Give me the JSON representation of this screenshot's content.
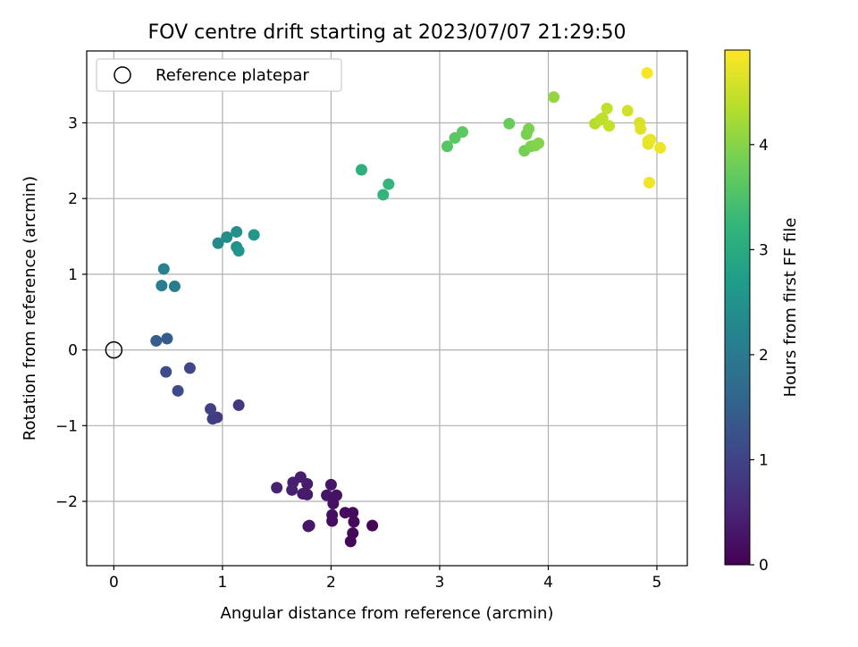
{
  "chart_data": {
    "type": "scatter",
    "title": "FOV centre drift starting at 2023/07/07 21:29:50",
    "xlabel": "Angular distance from reference (arcmin)",
    "ylabel": "Rotation from reference (arcmin)",
    "xlim": [
      -0.25,
      5.28
    ],
    "ylim": [
      -2.85,
      3.95
    ],
    "xticks": [
      0,
      1,
      2,
      3,
      4,
      5
    ],
    "xtick_labels": [
      "0",
      "1",
      "2",
      "3",
      "4",
      "5"
    ],
    "yticks": [
      -2,
      -1,
      0,
      1,
      2,
      3
    ],
    "ytick_labels": [
      "−2",
      "−1",
      "0",
      "1",
      "2",
      "3"
    ],
    "grid": true,
    "legend": {
      "placement": "upper-left",
      "label": "Reference platepar"
    },
    "reference_point": {
      "x": 0,
      "y": 0
    },
    "colorbar": {
      "label": "Hours from first FF file",
      "range": [
        0,
        4.9
      ],
      "ticks": [
        0,
        1,
        2,
        3,
        4
      ],
      "tick_labels": [
        "0",
        "1",
        "2",
        "3",
        "4"
      ],
      "colormap": [
        "#440154",
        "#482878",
        "#3e4989",
        "#31688e",
        "#26828e",
        "#1f9e89",
        "#35b779",
        "#6ece58",
        "#b5de2b",
        "#fde725"
      ]
    },
    "points": [
      {
        "x": 2.38,
        "y": -2.32,
        "h": 0.05
      },
      {
        "x": 2.18,
        "y": -2.53,
        "h": 0.08
      },
      {
        "x": 2.2,
        "y": -2.42,
        "h": 0.1
      },
      {
        "x": 2.21,
        "y": -2.27,
        "h": 0.12
      },
      {
        "x": 2.2,
        "y": -2.15,
        "h": 0.14
      },
      {
        "x": 2.13,
        "y": -2.15,
        "h": 0.16
      },
      {
        "x": 2.01,
        "y": -2.26,
        "h": 0.18
      },
      {
        "x": 2.01,
        "y": -2.18,
        "h": 0.2
      },
      {
        "x": 2.02,
        "y": -2.03,
        "h": 0.22
      },
      {
        "x": 2.05,
        "y": -1.92,
        "h": 0.24
      },
      {
        "x": 1.96,
        "y": -1.92,
        "h": 0.26
      },
      {
        "x": 2.0,
        "y": -1.78,
        "h": 0.28
      },
      {
        "x": 1.79,
        "y": -2.33,
        "h": 0.3
      },
      {
        "x": 1.8,
        "y": -2.32,
        "h": 0.32
      },
      {
        "x": 1.74,
        "y": -1.9,
        "h": 0.34
      },
      {
        "x": 1.78,
        "y": -1.91,
        "h": 0.36
      },
      {
        "x": 1.78,
        "y": -1.77,
        "h": 0.38
      },
      {
        "x": 1.72,
        "y": -1.68,
        "h": 0.4
      },
      {
        "x": 1.65,
        "y": -1.75,
        "h": 0.42
      },
      {
        "x": 1.64,
        "y": -1.85,
        "h": 0.44
      },
      {
        "x": 1.5,
        "y": -1.82,
        "h": 0.46
      },
      {
        "x": 1.15,
        "y": -0.73,
        "h": 0.8
      },
      {
        "x": 0.95,
        "y": -0.89,
        "h": 0.85
      },
      {
        "x": 0.91,
        "y": -0.91,
        "h": 0.9
      },
      {
        "x": 0.89,
        "y": -0.78,
        "h": 0.95
      },
      {
        "x": 0.7,
        "y": -0.24,
        "h": 1.05
      },
      {
        "x": 0.59,
        "y": -0.54,
        "h": 1.1
      },
      {
        "x": 0.48,
        "y": -0.29,
        "h": 1.15
      },
      {
        "x": 0.49,
        "y": 0.15,
        "h": 1.4
      },
      {
        "x": 0.39,
        "y": 0.12,
        "h": 1.45
      },
      {
        "x": 0.56,
        "y": 0.84,
        "h": 2.05
      },
      {
        "x": 0.44,
        "y": 0.85,
        "h": 2.1
      },
      {
        "x": 0.46,
        "y": 1.07,
        "h": 2.15
      },
      {
        "x": 0.96,
        "y": 1.41,
        "h": 2.35
      },
      {
        "x": 1.04,
        "y": 1.49,
        "h": 2.4
      },
      {
        "x": 1.13,
        "y": 1.56,
        "h": 2.45
      },
      {
        "x": 1.13,
        "y": 1.36,
        "h": 2.5
      },
      {
        "x": 1.15,
        "y": 1.31,
        "h": 2.55
      },
      {
        "x": 1.29,
        "y": 1.52,
        "h": 2.6
      },
      {
        "x": 2.28,
        "y": 2.38,
        "h": 3.1
      },
      {
        "x": 2.48,
        "y": 2.05,
        "h": 3.2
      },
      {
        "x": 2.53,
        "y": 2.19,
        "h": 3.25
      },
      {
        "x": 3.07,
        "y": 2.69,
        "h": 3.6
      },
      {
        "x": 3.14,
        "y": 2.8,
        "h": 3.62
      },
      {
        "x": 3.21,
        "y": 2.88,
        "h": 3.65
      },
      {
        "x": 3.64,
        "y": 2.99,
        "h": 3.75
      },
      {
        "x": 3.78,
        "y": 2.63,
        "h": 3.85
      },
      {
        "x": 3.8,
        "y": 2.85,
        "h": 3.88
      },
      {
        "x": 3.82,
        "y": 2.92,
        "h": 3.9
      },
      {
        "x": 3.84,
        "y": 2.69,
        "h": 3.92
      },
      {
        "x": 3.88,
        "y": 2.7,
        "h": 3.95
      },
      {
        "x": 3.91,
        "y": 2.73,
        "h": 3.98
      },
      {
        "x": 4.05,
        "y": 3.34,
        "h": 4.1
      },
      {
        "x": 4.43,
        "y": 2.99,
        "h": 4.35
      },
      {
        "x": 4.48,
        "y": 3.04,
        "h": 4.4
      },
      {
        "x": 4.5,
        "y": 3.06,
        "h": 4.42
      },
      {
        "x": 4.54,
        "y": 3.19,
        "h": 4.45
      },
      {
        "x": 4.56,
        "y": 2.96,
        "h": 4.48
      },
      {
        "x": 4.73,
        "y": 3.16,
        "h": 4.55
      },
      {
        "x": 4.84,
        "y": 3.0,
        "h": 4.6
      },
      {
        "x": 4.85,
        "y": 2.92,
        "h": 4.65
      },
      {
        "x": 4.91,
        "y": 3.66,
        "h": 4.85
      },
      {
        "x": 4.92,
        "y": 2.76,
        "h": 4.7
      },
      {
        "x": 4.92,
        "y": 2.72,
        "h": 4.72
      },
      {
        "x": 4.93,
        "y": 2.21,
        "h": 4.8
      },
      {
        "x": 4.94,
        "y": 2.78,
        "h": 4.75
      },
      {
        "x": 5.03,
        "y": 2.67,
        "h": 4.78
      }
    ]
  }
}
